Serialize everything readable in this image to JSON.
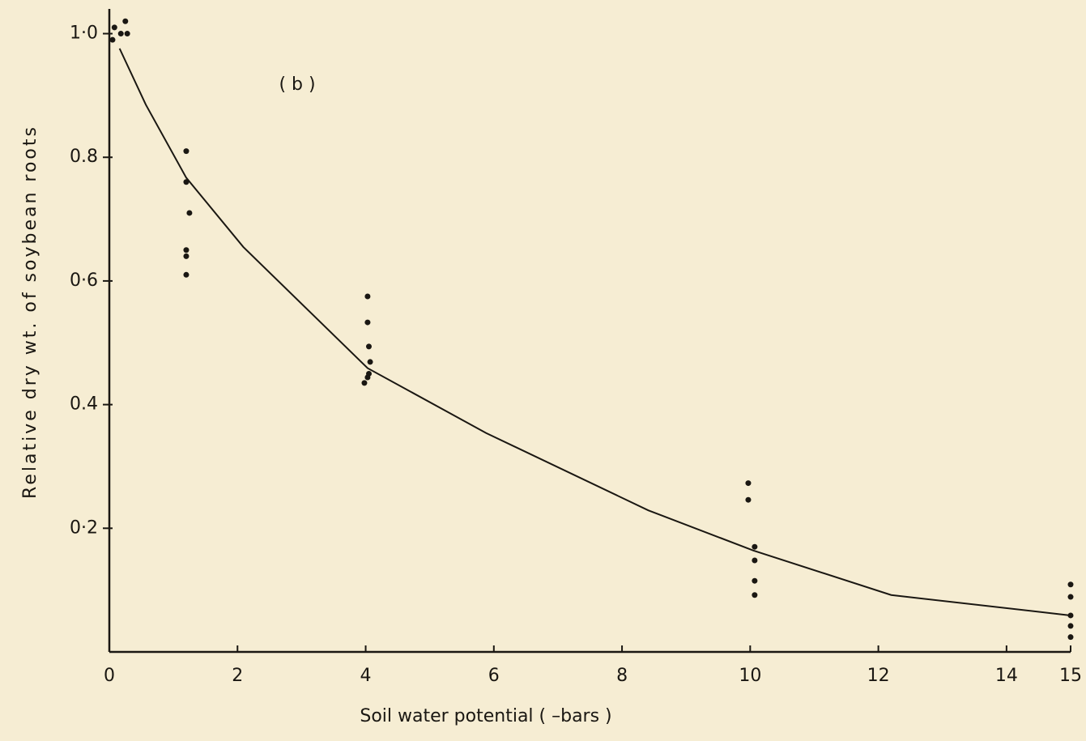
{
  "chart_data": {
    "type": "scatter",
    "annotation": "( b )",
    "xlabel": "Soil water potential ( –bars )",
    "ylabel": "Relative dry wt. of soybean roots",
    "color": "#1a1712",
    "xlim": [
      0,
      15
    ],
    "ylim": [
      0,
      1.04
    ],
    "xticks": [
      0,
      2,
      4,
      6,
      8,
      10,
      12,
      14,
      15
    ],
    "yticks": [
      {
        "value": 0.2,
        "label": "0·2"
      },
      0.4,
      {
        "value": 0.6,
        "label": "0·6"
      },
      0.8,
      {
        "value": 1.0,
        "label": "1·0"
      }
    ],
    "points": {
      "x": [
        0.08,
        0.05,
        0.18,
        0.25,
        0.28,
        1.2,
        1.2,
        1.25,
        1.2,
        1.2,
        1.2,
        4.03,
        4.03,
        4.05,
        4.07,
        4.05,
        4.03,
        3.98,
        9.97,
        9.97,
        10.07,
        10.07,
        10.07,
        10.07,
        15,
        15,
        15,
        15,
        15
      ],
      "y": [
        1.01,
        0.99,
        1.0,
        1.02,
        1.0,
        0.81,
        0.76,
        0.71,
        0.65,
        0.64,
        0.61,
        0.575,
        0.533,
        0.494,
        0.469,
        0.45,
        0.444,
        0.435,
        0.273,
        0.246,
        0.17,
        0.148,
        0.115,
        0.092,
        0.109,
        0.089,
        0.059,
        0.042,
        0.024
      ]
    },
    "curve": {
      "x": [
        0.16,
        0.57,
        1.2,
        2.09,
        4.03,
        5.88,
        8.41,
        10.05,
        12.2,
        15
      ],
      "y": [
        0.976,
        0.885,
        0.767,
        0.655,
        0.459,
        0.354,
        0.229,
        0.164,
        0.092,
        0.059
      ]
    }
  }
}
